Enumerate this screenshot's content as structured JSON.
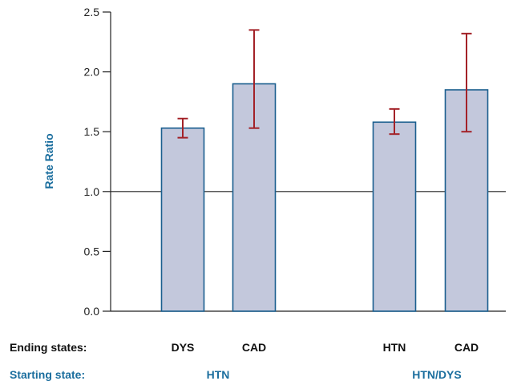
{
  "colors": {
    "bar_fill": "#c3c8dc",
    "bar_stroke": "#1b5f8f",
    "error_bar": "#a32228",
    "axis": "#222222",
    "label_blue": "#1b6e9e"
  },
  "chart_data": {
    "type": "bar",
    "ylabel": "Rate Ratio",
    "ylim": [
      0,
      2.5
    ],
    "yticks": [
      "0.0",
      "0.5",
      "1.0",
      "1.5",
      "2.0",
      "2.5"
    ],
    "reference_line": 1.0,
    "grid": false,
    "row_labels": {
      "ending": "Ending states:",
      "starting": "Starting state:"
    },
    "groups": [
      {
        "starting_state": "HTN",
        "bars": [
          {
            "ending_state": "DYS",
            "value": 1.53,
            "ci_low": 1.45,
            "ci_high": 1.61
          },
          {
            "ending_state": "CAD",
            "value": 1.9,
            "ci_low": 1.53,
            "ci_high": 2.35
          }
        ]
      },
      {
        "starting_state": "HTN/DYS",
        "bars": [
          {
            "ending_state": "HTN",
            "value": 1.58,
            "ci_low": 1.48,
            "ci_high": 1.69
          },
          {
            "ending_state": "CAD",
            "value": 1.85,
            "ci_low": 1.5,
            "ci_high": 2.32
          }
        ]
      }
    ]
  }
}
